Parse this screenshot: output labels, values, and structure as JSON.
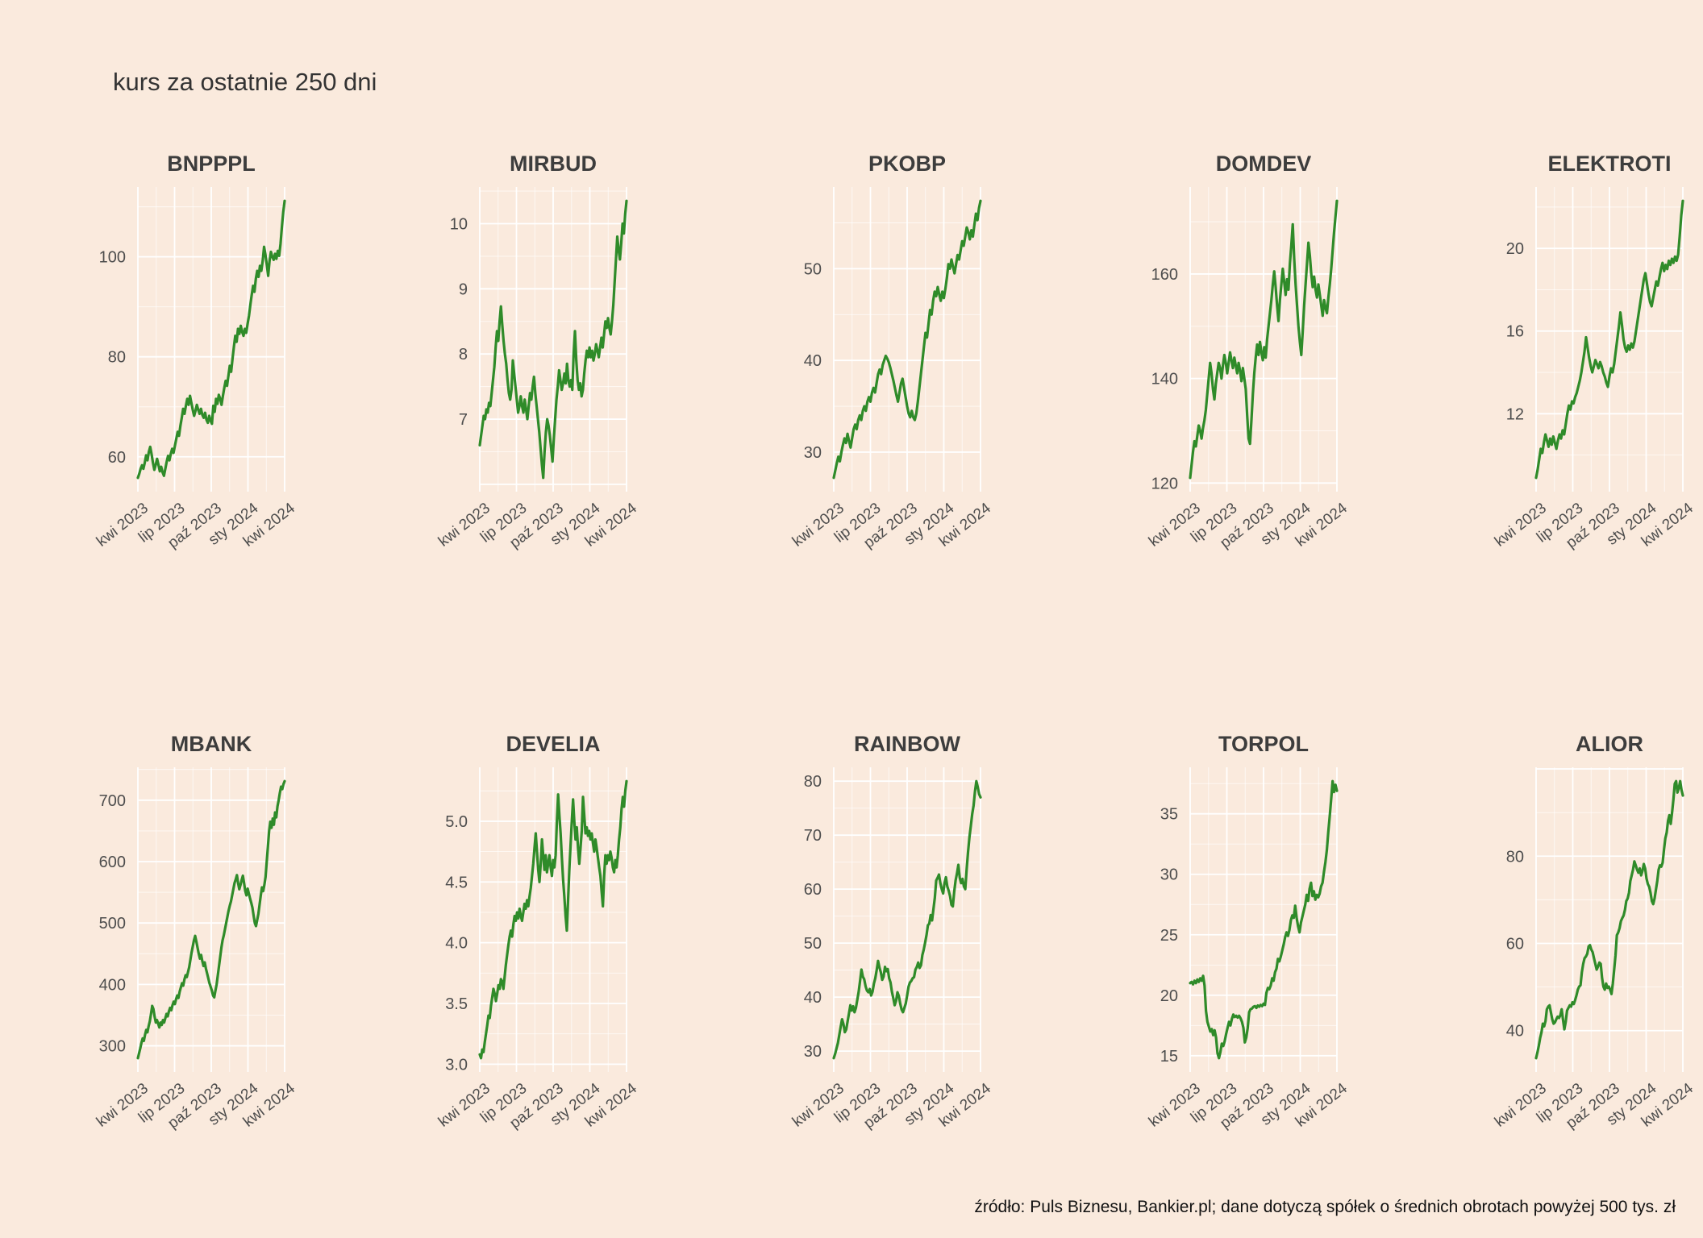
{
  "page": {
    "title": "kurs za ostatnie 250 dni",
    "footer": "źródło: Puls Biznesu, Bankier.pl; dane dotyczą spółek o średnich obrotach powyżej 500 tys. zł",
    "background_color": "#faeadd",
    "grid_color": "#ffffff",
    "line_color": "#2f8b29",
    "title_color": "#333333",
    "panel_title_color": "#3d3d3d",
    "axis_text_color": "#4d4d4d",
    "footer_color": "#111111"
  },
  "chart_data": [
    {
      "type": "line",
      "title": "BNPPPL",
      "x_ticklabels": [
        "kwi 2023",
        "lip 2023",
        "paź 2023",
        "sty 2024",
        "kwi 2024"
      ],
      "yticks": [
        60,
        80,
        100
      ],
      "ytick_labels": [
        "60",
        "80",
        "100"
      ],
      "values": [
        55.8,
        56.6,
        57.6,
        58.3,
        57.6,
        58.8,
        60.3,
        59.3,
        61,
        62,
        60.5,
        58.8,
        57.4,
        58.4,
        59.6,
        58.4,
        57.1,
        58,
        56.9,
        56.2,
        57.6,
        59,
        60.2,
        59.3,
        60.6,
        61.6,
        60.8,
        62.2,
        63.6,
        65,
        64.2,
        66.2,
        67.8,
        69.6,
        68.6,
        70.2,
        71.6,
        70.4,
        72.2,
        70.8,
        69.4,
        68.2,
        69.2,
        70.4,
        69.4,
        68.6,
        69.6,
        68.4,
        67.8,
        68.8,
        67.4,
        66.8,
        68.2,
        67.2,
        66.6,
        70.2,
        69,
        71.6,
        70.6,
        72.4,
        71.6,
        70.4,
        72.2,
        73.8,
        75.2,
        74.2,
        76.2,
        78.2,
        77,
        79.6,
        82,
        84.2,
        83,
        85.6,
        84.6,
        86.2,
        85,
        84.2,
        85.6,
        84.8,
        86.6,
        88.2,
        90.4,
        92.4,
        94.2,
        93,
        95.6,
        97.2,
        96,
        98.2,
        97.2,
        99.2,
        102,
        100.4,
        98.4,
        96.2,
        99.2,
        101,
        100,
        99.4,
        100.6,
        99.6,
        101.2,
        100.2,
        102.6,
        106,
        109,
        111.2
      ]
    },
    {
      "type": "line",
      "title": "MIRBUD",
      "x_ticklabels": [
        "kwi 2023",
        "lip 2023",
        "paź 2023",
        "sty 2024",
        "kwi 2024"
      ],
      "yticks": [
        7,
        8,
        9,
        10
      ],
      "ytick_labels": [
        "7",
        "8",
        "9",
        "10"
      ],
      "values": [
        6.6,
        6.75,
        6.9,
        7.05,
        7.0,
        7.15,
        7.1,
        7.25,
        7.2,
        7.4,
        7.6,
        7.8,
        8.1,
        8.35,
        8.2,
        8.5,
        8.73,
        8.45,
        8.2,
        8.0,
        7.85,
        7.6,
        7.4,
        7.3,
        7.45,
        7.9,
        7.7,
        7.5,
        7.3,
        7.1,
        7.2,
        7.35,
        7.2,
        7.1,
        7.3,
        7.15,
        7.0,
        7.2,
        7.4,
        7.3,
        7.5,
        7.65,
        7.4,
        7.2,
        7.0,
        6.8,
        6.55,
        6.3,
        6.1,
        6.5,
        6.8,
        7.0,
        6.9,
        6.75,
        6.55,
        6.35,
        6.7,
        7.0,
        7.3,
        7.5,
        7.75,
        7.6,
        7.45,
        7.55,
        7.7,
        7.55,
        7.85,
        7.6,
        7.5,
        7.6,
        7.45,
        8.0,
        8.35,
        7.9,
        7.6,
        7.45,
        7.55,
        7.35,
        7.45,
        7.7,
        7.9,
        8.05,
        7.95,
        8.1,
        7.95,
        8.05,
        7.9,
        8.0,
        8.15,
        8.05,
        7.95,
        8.1,
        8.25,
        8.1,
        8.3,
        8.5,
        8.4,
        8.55,
        8.4,
        8.3,
        8.5,
        8.75,
        9.1,
        9.45,
        9.8,
        9.6,
        9.45,
        9.7,
        10.0,
        9.85,
        10.15,
        10.35
      ]
    },
    {
      "type": "line",
      "title": "PKOBP",
      "x_ticklabels": [
        "kwi 2023",
        "lip 2023",
        "paź 2023",
        "sty 2024",
        "kwi 2024"
      ],
      "yticks": [
        30,
        40,
        50
      ],
      "ytick_labels": [
        "30",
        "40",
        "50"
      ],
      "values": [
        27.2,
        28,
        28.8,
        29.5,
        29,
        30,
        30.8,
        31.5,
        31,
        32,
        31.2,
        30.5,
        31.5,
        32.5,
        33,
        32.5,
        33.5,
        34,
        33.5,
        34.5,
        35,
        34.5,
        35.5,
        36,
        35.5,
        36.5,
        37,
        36.5,
        37.5,
        38.5,
        39,
        38.5,
        39.5,
        40,
        40.5,
        40.2,
        39.8,
        39.2,
        38.5,
        37.8,
        37,
        36.2,
        35.5,
        36.5,
        37.5,
        38,
        37,
        36,
        35,
        34.2,
        33.8,
        34.5,
        33.8,
        33.5,
        34.2,
        35.5,
        37,
        38.5,
        40,
        41.5,
        43,
        42.5,
        44,
        45.5,
        45,
        46.5,
        47.5,
        47,
        48,
        47.2,
        46.5,
        47.5,
        46.8,
        47.8,
        49,
        50.5,
        50,
        51,
        50.2,
        49.5,
        50.5,
        51.5,
        51,
        52,
        53,
        52.5,
        53.5,
        54.5,
        54,
        53.2,
        54.2,
        53.5,
        54.8,
        56,
        55.3,
        56.6,
        57.4
      ]
    },
    {
      "type": "line",
      "title": "DOMDEV",
      "x_ticklabels": [
        "kwi 2023",
        "lip 2023",
        "paź 2023",
        "sty 2024",
        "kwi 2024"
      ],
      "yticks": [
        120,
        140,
        160
      ],
      "ytick_labels": [
        "120",
        "140",
        "160"
      ],
      "values": [
        121,
        123.5,
        126,
        128,
        127,
        129,
        131,
        130,
        128.5,
        130.5,
        132,
        134,
        137,
        140,
        143,
        141,
        138,
        136,
        139,
        141,
        143,
        142,
        140,
        142.5,
        144.5,
        143,
        141,
        143,
        145,
        143.5,
        142,
        144,
        142.5,
        141,
        143,
        141.5,
        139.5,
        142,
        140,
        138,
        133,
        128.5,
        127.5,
        132,
        137,
        141,
        144,
        146.5,
        144.5,
        147,
        145,
        143.5,
        146,
        144,
        147.5,
        150,
        152.5,
        155,
        158,
        160.5,
        157.5,
        154,
        151,
        155,
        158,
        161,
        158.5,
        156,
        159,
        157,
        162,
        165.5,
        169.5,
        163,
        158,
        154,
        150,
        147,
        144.5,
        149,
        154,
        158,
        162,
        166,
        163.5,
        160,
        157.5,
        159.5,
        157,
        155.5,
        158,
        156,
        154,
        152,
        155,
        153.5,
        152.5,
        155.5,
        158,
        161,
        164.5,
        168,
        171,
        174
      ]
    },
    {
      "type": "line",
      "title": "ELEKTROTI",
      "x_ticklabels": [
        "kwi 2023",
        "lip 2023",
        "paź 2023",
        "sty 2024",
        "kwi 2024"
      ],
      "yticks": [
        12,
        16,
        20
      ],
      "ytick_labels": [
        "12",
        "16",
        "20"
      ],
      "values": [
        8.9,
        9.3,
        9.8,
        10.3,
        10.1,
        10.6,
        11.0,
        10.7,
        10.4,
        10.8,
        10.5,
        10.9,
        10.6,
        10.3,
        10.7,
        11.0,
        10.8,
        11.2,
        11.0,
        11.5,
        12.0,
        12.4,
        12.2,
        12.6,
        12.5,
        12.8,
        13.0,
        13.3,
        13.6,
        14.0,
        14.5,
        15.0,
        15.7,
        15.2,
        14.7,
        14.3,
        14.0,
        14.3,
        14.6,
        14.4,
        14.2,
        14.5,
        14.3,
        14.0,
        13.8,
        13.5,
        13.3,
        13.8,
        14.2,
        14.0,
        14.4,
        15.0,
        15.6,
        16.2,
        16.9,
        16.3,
        15.6,
        15.2,
        15.0,
        15.3,
        15.1,
        15.4,
        15.2,
        15.5,
        16.0,
        16.5,
        17.0,
        17.5,
        18.0,
        18.5,
        18.8,
        18.3,
        17.8,
        17.4,
        17.2,
        17.6,
        18.0,
        18.4,
        18.2,
        18.6,
        19.0,
        19.3,
        18.9,
        19.2,
        19.0,
        19.4,
        19.2,
        19.5,
        19.3,
        19.6,
        19.4,
        19.7,
        20.6,
        21.6,
        22.3
      ]
    },
    {
      "type": "line",
      "title": "MBANK",
      "x_ticklabels": [
        "kwi 2023",
        "lip 2023",
        "paź 2023",
        "sty 2024",
        "kwi 2024"
      ],
      "yticks": [
        300,
        400,
        500,
        600,
        700
      ],
      "ytick_labels": [
        "300",
        "400",
        "500",
        "600",
        "700"
      ],
      "values": [
        280,
        288,
        296,
        305,
        312,
        308,
        318,
        326,
        322,
        332,
        340,
        352,
        365,
        360,
        348,
        338,
        342,
        336,
        330,
        338,
        334,
        342,
        338,
        345,
        352,
        348,
        356,
        362,
        358,
        366,
        372,
        368,
        376,
        382,
        378,
        388,
        395,
        402,
        398,
        408,
        415,
        412,
        420,
        428,
        440,
        452,
        462,
        472,
        479,
        470,
        460,
        450,
        442,
        448,
        438,
        430,
        436,
        426,
        418,
        410,
        402,
        396,
        390,
        382,
        379,
        390,
        400,
        415,
        430,
        445,
        460,
        472,
        480,
        490,
        500,
        510,
        520,
        528,
        535,
        545,
        555,
        565,
        571,
        578,
        565,
        555,
        562,
        570,
        577,
        565,
        552,
        545,
        556,
        548,
        540,
        533,
        525,
        512,
        500,
        495,
        505,
        515,
        530,
        545,
        558,
        552,
        562,
        575,
        600,
        625,
        650,
        665,
        655,
        670,
        660,
        680,
        672,
        690,
        700,
        712,
        722,
        718,
        726,
        731
      ]
    },
    {
      "type": "line",
      "title": "DEVELIA",
      "x_ticklabels": [
        "kwi 2023",
        "lip 2023",
        "paź 2023",
        "sty 2024",
        "kwi 2024"
      ],
      "yticks": [
        3.0,
        3.5,
        4.0,
        4.5,
        5.0
      ],
      "ytick_labels": [
        "3.0",
        "3.5",
        "4.0",
        "4.5",
        "5.0"
      ],
      "values": [
        3.08,
        3.05,
        3.12,
        3.1,
        3.18,
        3.25,
        3.32,
        3.4,
        3.38,
        3.48,
        3.55,
        3.62,
        3.58,
        3.52,
        3.58,
        3.65,
        3.62,
        3.7,
        3.68,
        3.62,
        3.72,
        3.82,
        3.9,
        3.98,
        4.05,
        4.1,
        4.05,
        4.15,
        4.22,
        4.18,
        4.25,
        4.2,
        4.28,
        4.22,
        4.18,
        4.25,
        4.32,
        4.28,
        4.35,
        4.3,
        4.38,
        4.45,
        4.55,
        4.65,
        4.78,
        4.9,
        4.75,
        4.6,
        4.5,
        4.65,
        4.85,
        4.72,
        4.6,
        4.72,
        4.58,
        4.65,
        4.72,
        4.62,
        4.55,
        4.68,
        4.62,
        4.72,
        5.0,
        5.22,
        5.05,
        4.9,
        4.7,
        4.52,
        4.38,
        4.22,
        4.1,
        4.35,
        4.6,
        4.8,
        5.0,
        5.18,
        5.0,
        4.85,
        4.95,
        4.78,
        4.65,
        4.78,
        4.92,
        5.2,
        5.05,
        4.9,
        4.95,
        4.88,
        4.92,
        4.85,
        4.9,
        4.82,
        4.75,
        4.85,
        4.78,
        4.7,
        4.62,
        4.55,
        4.42,
        4.3,
        4.55,
        4.72,
        4.65,
        4.72,
        4.68,
        4.75,
        4.7,
        4.62,
        4.58,
        4.68,
        4.62,
        4.72,
        4.85,
        4.95,
        5.1,
        5.2,
        5.12,
        5.25,
        5.33
      ]
    },
    {
      "type": "line",
      "title": "RAINBOW",
      "x_ticklabels": [
        "kwi 2023",
        "lip 2023",
        "paź 2023",
        "sty 2024",
        "kwi 2024"
      ],
      "yticks": [
        30,
        40,
        50,
        60,
        70,
        80
      ],
      "ytick_labels": [
        "30",
        "40",
        "50",
        "60",
        "70",
        "80"
      ],
      "values": [
        28.7,
        29.5,
        30.5,
        31.5,
        33,
        34.5,
        35.9,
        35,
        33.5,
        34,
        35.5,
        37,
        38.5,
        37.5,
        38.3,
        37.2,
        38,
        39.5,
        41,
        43,
        45.1,
        43.8,
        43.3,
        42,
        41.2,
        40.9,
        41.5,
        40.3,
        41,
        42.5,
        43.5,
        45,
        46.7,
        45.5,
        44.6,
        43.2,
        43.8,
        45.6,
        44.8,
        45.2,
        43.5,
        42.7,
        41,
        39.8,
        38.5,
        39.3,
        40.9,
        40.2,
        38.8,
        37.7,
        37.2,
        38,
        38.8,
        40.3,
        41.9,
        42.7,
        43,
        43.5,
        43.7,
        45.1,
        45.6,
        46.4,
        45.4,
        45.9,
        47.8,
        48.8,
        50.1,
        51.5,
        53.3,
        53.6,
        55.2,
        54.2,
        56.3,
        58.4,
        61.6,
        62.1,
        62.7,
        61.1,
        60,
        59.2,
        61.1,
        62.2,
        60.5,
        59.7,
        58.7,
        57.1,
        56.8,
        59.5,
        61.6,
        62.9,
        64.5,
        62.1,
        61.1,
        61.9,
        60.5,
        60,
        63.7,
        66.9,
        69.6,
        71.7,
        73.9,
        75.5,
        78.1,
        80,
        78.9,
        77.6,
        77
      ]
    },
    {
      "type": "line",
      "title": "TORPOL",
      "x_ticklabels": [
        "kwi 2023",
        "lip 2023",
        "paź 2023",
        "sty 2024",
        "kwi 2024"
      ],
      "yticks": [
        15,
        20,
        25,
        30,
        35
      ],
      "ytick_labels": [
        "15",
        "20",
        "25",
        "30",
        "35"
      ],
      "values": [
        21,
        21.1,
        20.9,
        21.2,
        21,
        21.3,
        21.1,
        21.4,
        21.2,
        21.6,
        20.8,
        18.7,
        17.8,
        17.4,
        17.0,
        17.2,
        16.7,
        17.1,
        16.5,
        15.2,
        14.8,
        15.3,
        16,
        15.8,
        16.2,
        16.8,
        17.3,
        17.8,
        17.5,
        18.05,
        18.4,
        18.2,
        18.3,
        18.15,
        18.3,
        18.1,
        17.8,
        17.3,
        16.1,
        16.5,
        17.3,
        18.6,
        18.85,
        18.9,
        19.05,
        19.1,
        18.95,
        19.15,
        19.05,
        19.2,
        19.1,
        19.3,
        19.2,
        20.2,
        20.6,
        20.5,
        20.8,
        21.4,
        21.2,
        21.9,
        22.2,
        23,
        22.8,
        23.2,
        23.7,
        24.2,
        24.8,
        25.2,
        24.9,
        25.4,
        26.2,
        26.6,
        26.4,
        27.4,
        26.4,
        25.7,
        25.2,
        26.0,
        26.5,
        27.0,
        27.5,
        28.3,
        27.8,
        28.8,
        29.3,
        28.2,
        28.6,
        27.9,
        28.3,
        28.1,
        28.4,
        29,
        29.3,
        30.2,
        31,
        32,
        33.5,
        34.8,
        36.2,
        37.7,
        36.8,
        37.4,
        36.9
      ]
    },
    {
      "type": "line",
      "title": "ALIOR",
      "x_ticklabels": [
        "kwi 2023",
        "lip 2023",
        "paź 2023",
        "sty 2024",
        "kwi 2024"
      ],
      "yticks": [
        40,
        60,
        80
      ],
      "ytick_labels": [
        "40",
        "60",
        "80"
      ],
      "values": [
        33.7,
        35,
        36.5,
        38.3,
        39.6,
        41.6,
        41,
        42.2,
        44.9,
        45.5,
        45.8,
        44.2,
        42.6,
        41.6,
        41.9,
        42.6,
        43.2,
        42.9,
        43.5,
        44.9,
        42.5,
        40.3,
        42,
        44.6,
        45.2,
        45.8,
        45.5,
        46.5,
        46.1,
        47,
        48.1,
        49.4,
        50.1,
        50.4,
        53.4,
        55.3,
        56.6,
        57,
        57.6,
        59.3,
        59.6,
        58.6,
        58,
        56.6,
        55.3,
        54,
        54.7,
        55.6,
        55.3,
        52.1,
        50.1,
        49.4,
        50.8,
        49.8,
        50.1,
        49.4,
        48.4,
        50.8,
        54,
        57.3,
        61.9,
        62.5,
        63.5,
        65.1,
        65.8,
        66.4,
        67.7,
        69.7,
        70.3,
        71.6,
        74.3,
        75.6,
        76.9,
        78.8,
        77.9,
        76.9,
        76.2,
        77.2,
        75.6,
        76.6,
        78.2,
        77.2,
        74.9,
        73.6,
        73,
        71.6,
        69.7,
        69,
        70.3,
        72.3,
        74.3,
        76.9,
        77.9,
        77.6,
        78.5,
        81.5,
        84.1,
        85.4,
        88.1,
        89.4,
        87.4,
        90,
        93,
        96.6,
        97.2,
        94.6,
        95.6,
        97.2,
        95.2,
        93.9
      ]
    }
  ]
}
